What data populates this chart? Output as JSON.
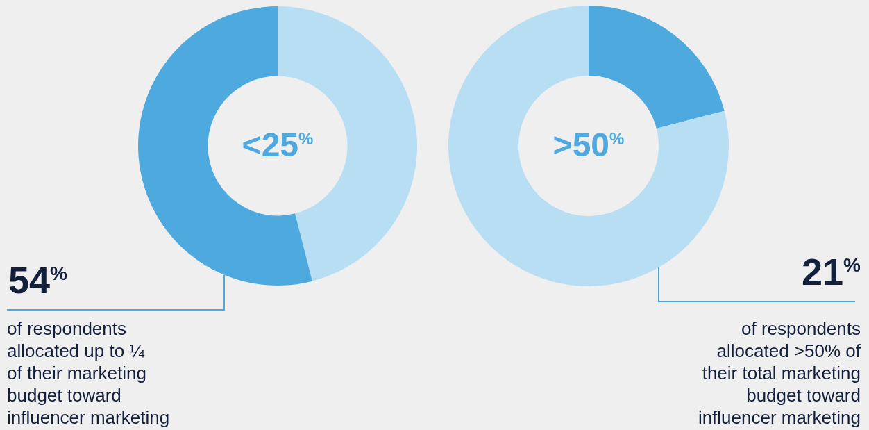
{
  "chart_data": [
    {
      "type": "donut",
      "categories": [
        null,
        null
      ],
      "values": [
        46,
        54
      ],
      "colors": [
        "#b7def2",
        "#4ea9de"
      ],
      "annotations": [
        "<25$^{%}$",
        "54$^{%}$",
        "of respondents\nallocated up to ¼\nof their marketing\nbudget toward\ninfluencer marketing"
      ]
    },
    {
      "type": "donut",
      "categories": [
        null,
        null
      ],
      "values": [
        21,
        79
      ],
      "colors": [
        "#4ea9de",
        "#b7def2"
      ],
      "annotations": [
        ">50$^{%}$",
        "21$^{%}$",
        "of respondents\nallocated >50% of\ntheir total marketing\nbudget toward\ninfluencer marketing"
      ]
    }
  ]
}
